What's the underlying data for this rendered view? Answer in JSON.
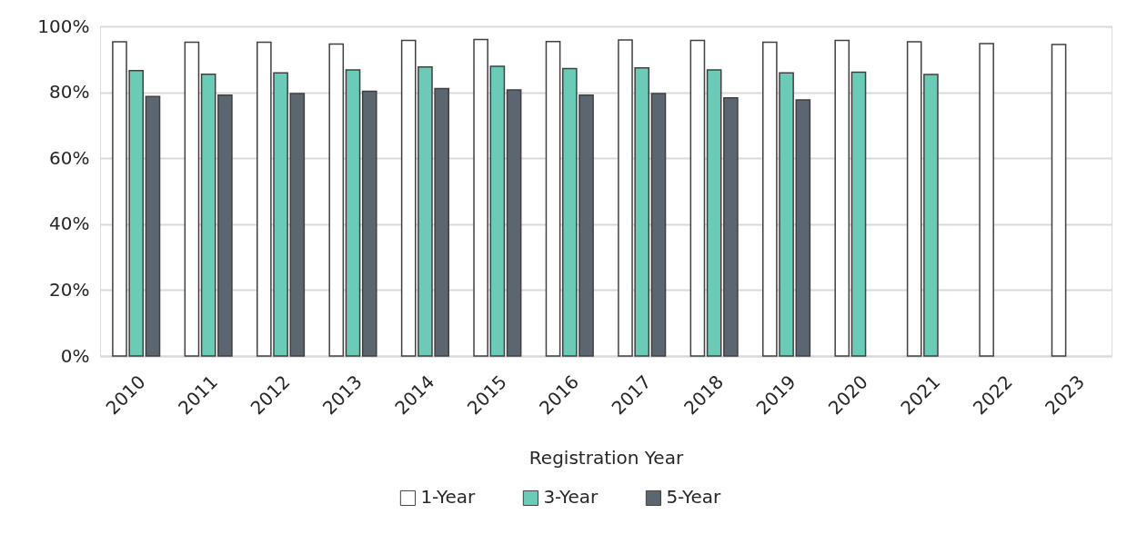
{
  "chart_data": {
    "type": "bar",
    "xlabel": "Registration Year",
    "categories": [
      "2010",
      "2011",
      "2012",
      "2013",
      "2014",
      "2015",
      "2016",
      "2017",
      "2018",
      "2019",
      "2020",
      "2021",
      "2022",
      "2023"
    ],
    "series": [
      {
        "name": "1-Year",
        "color": "#ffffff",
        "values": [
          95.3,
          95.2,
          95.2,
          94.6,
          95.7,
          96.0,
          95.4,
          95.9,
          95.7,
          95.2,
          95.7,
          95.3,
          94.8,
          94.5
        ]
      },
      {
        "name": "3-Year",
        "color": "#6ccbb7",
        "values": [
          86.6,
          85.5,
          85.9,
          86.8,
          87.7,
          87.9,
          87.2,
          87.4,
          86.8,
          85.9,
          86.1,
          85.4,
          null,
          null
        ]
      },
      {
        "name": "5-Year",
        "color": "#5b6670",
        "values": [
          78.7,
          79.1,
          79.6,
          80.3,
          81.1,
          80.7,
          79.1,
          79.6,
          78.3,
          77.7,
          null,
          null,
          null,
          null
        ]
      }
    ],
    "ylim": [
      0,
      100
    ],
    "yticks": [
      {
        "value": 0,
        "label": "0%"
      },
      {
        "value": 20,
        "label": "20%"
      },
      {
        "value": 40,
        "label": "40%"
      },
      {
        "value": 60,
        "label": "60%"
      },
      {
        "value": 80,
        "label": "80%"
      },
      {
        "value": 100,
        "label": "100%"
      }
    ],
    "grid": "y",
    "legend": "bottom"
  }
}
